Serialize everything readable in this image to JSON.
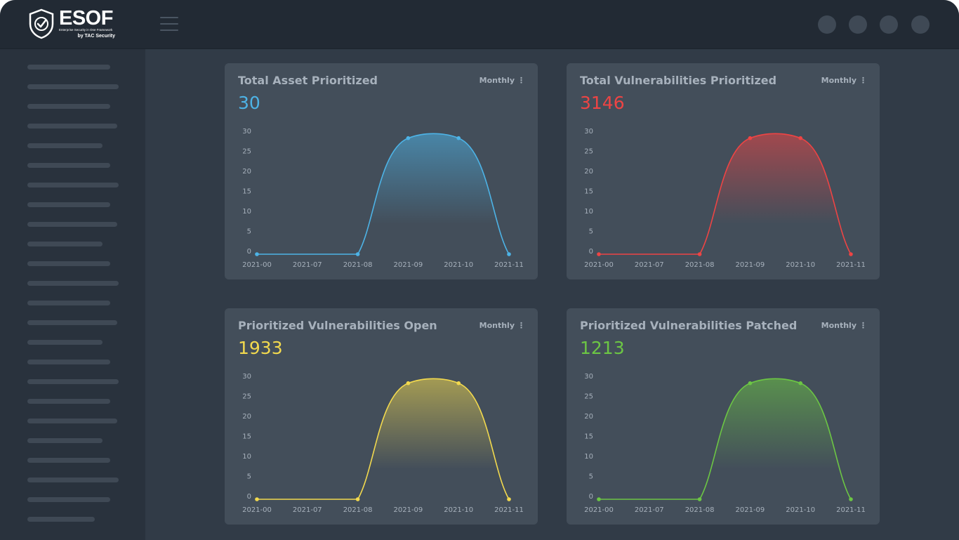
{
  "header": {
    "logo_text": "ESOF",
    "logo_tagline": "Enterprise Security in One Framework",
    "logo_by": "by TAC Security"
  },
  "cards": [
    {
      "title": "Total Asset Prioritized",
      "period": "Monthly",
      "value": "30",
      "color": "#4db3e6",
      "chart_data": {
        "type": "area",
        "x": [
          "2021-00",
          "2021-07",
          "2021-08",
          "2021-09",
          "2021-10",
          "2021-11"
        ],
        "points": [
          [
            0,
            0
          ],
          [
            2,
            0
          ],
          [
            3,
            29
          ],
          [
            4,
            29
          ],
          [
            5,
            0
          ]
        ],
        "yticks": [
          0,
          5,
          10,
          15,
          20,
          25,
          30
        ],
        "ylim": [
          0,
          30
        ]
      }
    },
    {
      "title": "Total Vulnerabilities Prioritized",
      "period": "Monthly",
      "value": "3146",
      "color": "#ee4444",
      "chart_data": {
        "type": "area",
        "x": [
          "2021-00",
          "2021-07",
          "2021-08",
          "2021-09",
          "2021-10",
          "2021-11"
        ],
        "points": [
          [
            0,
            0
          ],
          [
            2,
            0
          ],
          [
            3,
            29
          ],
          [
            4,
            29
          ],
          [
            5,
            0
          ]
        ],
        "yticks": [
          0,
          5,
          10,
          15,
          20,
          25,
          30
        ],
        "ylim": [
          0,
          30
        ]
      }
    },
    {
      "title": "Prioritized Vulnerabilities Open",
      "period": "Monthly",
      "value": "1933",
      "color": "#f2d94e",
      "chart_data": {
        "type": "area",
        "x": [
          "2021-00",
          "2021-07",
          "2021-08",
          "2021-09",
          "2021-10",
          "2021-11"
        ],
        "points": [
          [
            0,
            0
          ],
          [
            2,
            0
          ],
          [
            3,
            29
          ],
          [
            4,
            29
          ],
          [
            5,
            0
          ]
        ],
        "yticks": [
          0,
          5,
          10,
          15,
          20,
          25,
          30
        ],
        "ylim": [
          0,
          30
        ]
      }
    },
    {
      "title": "Prioritized Vulnerabilities Patched",
      "period": "Monthly",
      "value": "1213",
      "color": "#6cc644",
      "chart_data": {
        "type": "area",
        "x": [
          "2021-00",
          "2021-07",
          "2021-08",
          "2021-09",
          "2021-10",
          "2021-11"
        ],
        "points": [
          [
            0,
            0
          ],
          [
            2,
            0
          ],
          [
            3,
            29
          ],
          [
            4,
            29
          ],
          [
            5,
            0
          ]
        ],
        "yticks": [
          0,
          5,
          10,
          15,
          20,
          25,
          30
        ],
        "ylim": [
          0,
          30
        ]
      }
    }
  ]
}
